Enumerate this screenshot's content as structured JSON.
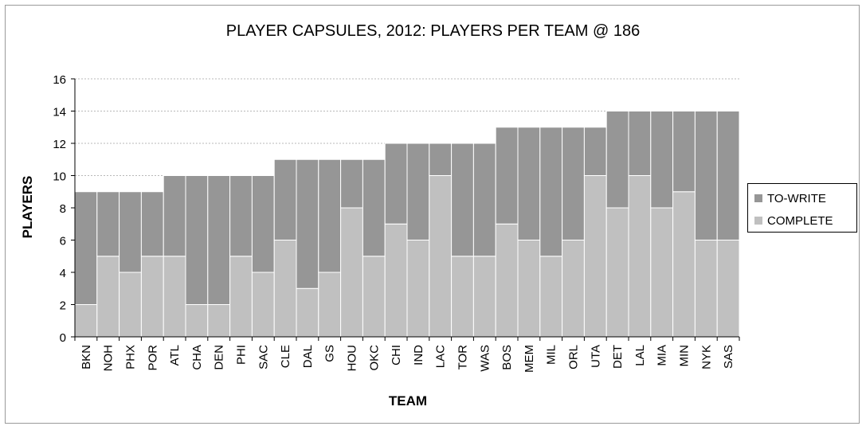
{
  "chart_data": {
    "type": "bar",
    "stacked": true,
    "title": "PLAYER CAPSULES, 2012: PLAYERS PER TEAM @ 186",
    "xlabel": "TEAM",
    "ylabel": "PLAYERS",
    "ylim": [
      0,
      16
    ],
    "yticks": [
      "0",
      "2",
      "4",
      "6",
      "8",
      "10",
      "12",
      "14",
      "16"
    ],
    "grid": true,
    "legend_position": "right",
    "categories": [
      "BKN",
      "NOH",
      "PHX",
      "POR",
      "ATL",
      "CHA",
      "DEN",
      "PHI",
      "SAC",
      "CLE",
      "DAL",
      "GS",
      "HOU",
      "OKC",
      "CHI",
      "IND",
      "LAC",
      "TOR",
      "WAS",
      "BOS",
      "MEM",
      "MIL",
      "ORL",
      "UTA",
      "DET",
      "LAL",
      "MIA",
      "MIN",
      "NYK",
      "SAS"
    ],
    "series": [
      {
        "name": "COMPLETE",
        "color": "#c0c0c0",
        "values": [
          2,
          5,
          4,
          5,
          5,
          2,
          2,
          5,
          4,
          6,
          3,
          4,
          8,
          5,
          7,
          6,
          10,
          5,
          5,
          7,
          6,
          5,
          6,
          10,
          8,
          10,
          8,
          9,
          6,
          6
        ]
      },
      {
        "name": "TO-WRITE",
        "color": "#969696",
        "values": [
          7,
          4,
          5,
          4,
          5,
          8,
          8,
          5,
          6,
          5,
          8,
          7,
          3,
          6,
          5,
          6,
          2,
          7,
          7,
          6,
          7,
          8,
          7,
          3,
          6,
          4,
          6,
          5,
          8,
          8
        ]
      }
    ],
    "legend": [
      {
        "label": "TO-WRITE",
        "color": "#969696"
      },
      {
        "label": "COMPLETE",
        "color": "#c0c0c0"
      }
    ]
  }
}
